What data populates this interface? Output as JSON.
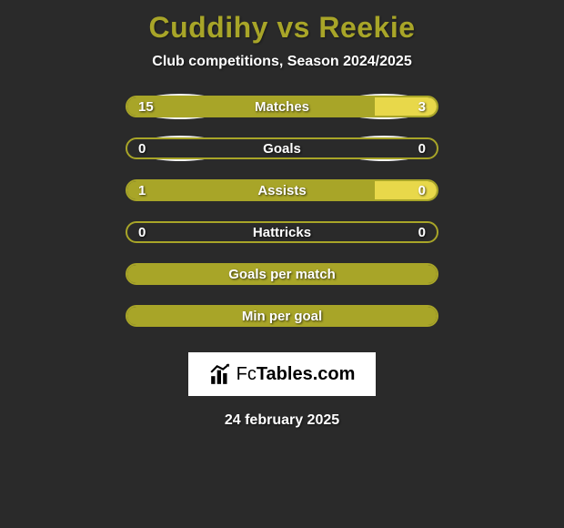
{
  "title": "Cuddihy vs Reekie",
  "subtitle": "Club competitions, Season 2024/2025",
  "date": "24 february 2025",
  "logo": {
    "part1": "Fc",
    "part2": "Tables.com"
  },
  "colors": {
    "background": "#2a2a2a",
    "title": "#a8a528",
    "text": "#ffffff",
    "bar_primary": "#a8a528",
    "bar_secondary": "#e8d84a",
    "ellipse": "#f5f5f5",
    "logo_bg": "#ffffff"
  },
  "rows": [
    {
      "label": "Matches",
      "left_value": "15",
      "right_value": "3",
      "left_pct": 80,
      "right_pct": 20,
      "ellipse_left": true,
      "ellipse_right": true
    },
    {
      "label": "Goals",
      "left_value": "0",
      "right_value": "0",
      "left_pct": 0,
      "right_pct": 0,
      "ellipse_left": true,
      "ellipse_right": true
    },
    {
      "label": "Assists",
      "left_value": "1",
      "right_value": "0",
      "left_pct": 80,
      "right_pct": 20,
      "ellipse_left": false,
      "ellipse_right": false
    },
    {
      "label": "Hattricks",
      "left_value": "0",
      "right_value": "0",
      "left_pct": 0,
      "right_pct": 0,
      "ellipse_left": false,
      "ellipse_right": false
    },
    {
      "label": "Goals per match",
      "left_value": "",
      "right_value": "",
      "left_pct": 100,
      "right_pct": 0,
      "ellipse_left": false,
      "ellipse_right": false
    },
    {
      "label": "Min per goal",
      "left_value": "",
      "right_value": "",
      "left_pct": 100,
      "right_pct": 0,
      "ellipse_left": false,
      "ellipse_right": false
    }
  ]
}
